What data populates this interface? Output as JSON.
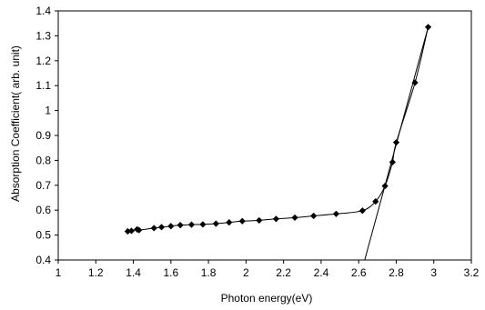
{
  "chart_data": {
    "type": "line",
    "title": "",
    "xlabel": "Photon energy(eV)",
    "ylabel": "Absorption Coefficient( arb. unit)",
    "xlim": [
      1,
      3.2
    ],
    "ylim": [
      0.4,
      1.4
    ],
    "xticks": [
      1,
      1.2,
      1.4,
      1.6,
      1.8,
      2,
      2.2,
      2.4,
      2.6,
      2.8,
      3,
      3.2
    ],
    "xtick_labels": [
      "1",
      "1.2",
      "1.4",
      "1.6",
      "1.8",
      "2",
      "2.2",
      "2.4",
      "2.6",
      "2.8",
      "3",
      "3.2"
    ],
    "yticks": [
      0.4,
      0.5,
      0.6,
      0.7,
      0.8,
      0.9,
      1,
      1.1,
      1.2,
      1.3,
      1.4
    ],
    "ytick_labels": [
      "0.4",
      "0.5",
      "0.6",
      "0.7",
      "0.8",
      "0.9",
      "1",
      "1.1",
      "1.2",
      "1.3",
      "1.4"
    ],
    "grid": false,
    "legend": "none",
    "colors": {
      "series": "#000000",
      "axis": "#000000"
    },
    "series": [
      {
        "marker": "diamond",
        "x": [
          1.37,
          1.39,
          1.42,
          1.43,
          1.51,
          1.55,
          1.6,
          1.65,
          1.71,
          1.77,
          1.84,
          1.91,
          1.98,
          2.07,
          2.16,
          2.26,
          2.36,
          2.48,
          2.62,
          2.69,
          2.74,
          2.78,
          2.8,
          2.9,
          2.97
        ],
        "y": [
          0.515,
          0.517,
          0.523,
          0.52,
          0.528,
          0.532,
          0.536,
          0.54,
          0.542,
          0.543,
          0.546,
          0.551,
          0.556,
          0.559,
          0.565,
          0.57,
          0.577,
          0.585,
          0.598,
          0.635,
          0.697,
          0.793,
          0.872,
          1.112,
          1.335
        ]
      }
    ],
    "fit_line": {
      "x": [
        2.632,
        2.97
      ],
      "y": [
        0.4,
        1.335
      ]
    }
  }
}
